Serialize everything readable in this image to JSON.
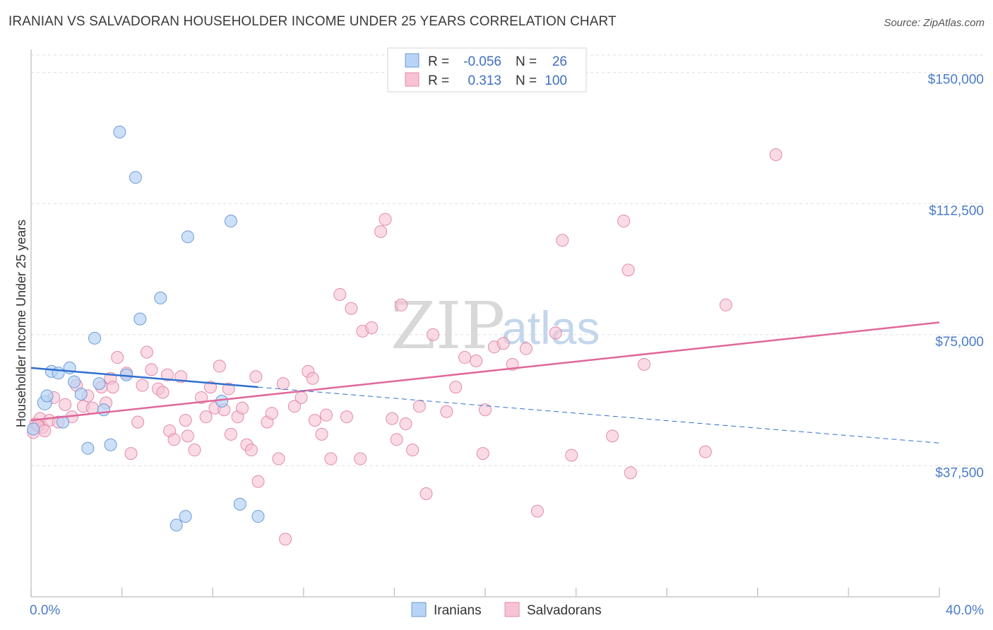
{
  "title": "IRANIAN VS SALVADORAN HOUSEHOLDER INCOME UNDER 25 YEARS CORRELATION CHART",
  "source": "Source: ZipAtlas.com",
  "watermark": {
    "part1": "ZIP",
    "part2": "atlas"
  },
  "colors": {
    "iranians_fill": "#b7d3f5",
    "iranians_stroke": "#6f9ad6",
    "iranians_line": "#2f6fcf",
    "salvadorans_fill": "#f7c3d4",
    "salvadorans_stroke": "#e28aab",
    "salvadorans_line": "#e0679a",
    "tick_label": "#4a7cc9",
    "grid": "#dddddd"
  },
  "legend": {
    "rows": [
      {
        "r_label": "R =",
        "r_value": "-0.056",
        "n_label": "N =",
        "n_value": "26"
      },
      {
        "r_label": "R =",
        "r_value": "0.313",
        "n_label": "N =",
        "n_value": "100"
      }
    ]
  },
  "bottom_legend": [
    "Iranians",
    "Salvadorans"
  ],
  "chart_data": {
    "type": "scatter",
    "ylabel": "Householder Income Under 25 years",
    "xlabel": "",
    "x_tick_labels": [
      "0.0%",
      "40.0%"
    ],
    "y_tick_labels": [
      "$150,000",
      "$112,500",
      "$75,000",
      "$37,500"
    ],
    "y_ticks": [
      150000,
      112500,
      75000,
      37500
    ],
    "xlim": [
      0,
      40
    ],
    "ylim": [
      0,
      155000
    ],
    "grid": true,
    "series": [
      {
        "name": "Iranians",
        "points": [
          [
            0.1,
            48000
          ],
          [
            0.6,
            55500
          ],
          [
            0.7,
            57500
          ],
          [
            0.9,
            64500
          ],
          [
            1.2,
            64000
          ],
          [
            1.4,
            50000
          ],
          [
            1.7,
            65500
          ],
          [
            1.9,
            61500
          ],
          [
            2.2,
            58000
          ],
          [
            2.5,
            42500
          ],
          [
            2.8,
            74000
          ],
          [
            3.0,
            61000
          ],
          [
            3.2,
            53500
          ],
          [
            3.5,
            43500
          ],
          [
            3.9,
            133000
          ],
          [
            4.2,
            63500
          ],
          [
            4.6,
            120000
          ],
          [
            4.8,
            79500
          ],
          [
            5.7,
            85500
          ],
          [
            6.4,
            20500
          ],
          [
            6.8,
            23000
          ],
          [
            6.9,
            103000
          ],
          [
            8.4,
            56000
          ],
          [
            8.8,
            107500
          ],
          [
            9.2,
            26500
          ],
          [
            10.0,
            23000
          ]
        ],
        "trend": {
          "x0": 0,
          "y0": 65500,
          "x1": 10,
          "y1": 60000,
          "dash_to_x": 40,
          "dash_to_y": 44000
        }
      },
      {
        "name": "Salvadorans",
        "points": [
          [
            0.1,
            47000
          ],
          [
            0.2,
            49500
          ],
          [
            0.4,
            51000
          ],
          [
            0.5,
            48500
          ],
          [
            0.8,
            50500
          ],
          [
            1.0,
            57000
          ],
          [
            1.2,
            50000
          ],
          [
            1.5,
            55000
          ],
          [
            1.8,
            51500
          ],
          [
            2.0,
            60500
          ],
          [
            2.3,
            54500
          ],
          [
            2.5,
            57500
          ],
          [
            2.7,
            54000
          ],
          [
            3.1,
            60000
          ],
          [
            3.3,
            55500
          ],
          [
            3.5,
            62500
          ],
          [
            3.6,
            60000
          ],
          [
            3.8,
            68500
          ],
          [
            4.2,
            64000
          ],
          [
            4.4,
            41000
          ],
          [
            4.7,
            50000
          ],
          [
            4.9,
            60500
          ],
          [
            5.1,
            70000
          ],
          [
            5.3,
            65000
          ],
          [
            5.6,
            59500
          ],
          [
            5.8,
            58500
          ],
          [
            6.0,
            63500
          ],
          [
            6.1,
            47500
          ],
          [
            6.3,
            45000
          ],
          [
            6.6,
            63000
          ],
          [
            6.8,
            50500
          ],
          [
            6.9,
            46000
          ],
          [
            7.2,
            42000
          ],
          [
            7.5,
            57000
          ],
          [
            7.7,
            51500
          ],
          [
            7.9,
            60000
          ],
          [
            8.1,
            54000
          ],
          [
            8.3,
            66000
          ],
          [
            8.5,
            53500
          ],
          [
            8.7,
            59500
          ],
          [
            8.8,
            46500
          ],
          [
            9.1,
            51500
          ],
          [
            9.3,
            54000
          ],
          [
            9.5,
            43500
          ],
          [
            9.7,
            42000
          ],
          [
            9.9,
            63000
          ],
          [
            10.0,
            33000
          ],
          [
            10.4,
            50000
          ],
          [
            10.6,
            52500
          ],
          [
            10.9,
            39500
          ],
          [
            11.1,
            61000
          ],
          [
            11.2,
            16500
          ],
          [
            11.6,
            54500
          ],
          [
            11.9,
            57000
          ],
          [
            12.2,
            64500
          ],
          [
            12.4,
            62500
          ],
          [
            12.5,
            50500
          ],
          [
            12.8,
            46500
          ],
          [
            13.0,
            52000
          ],
          [
            13.2,
            39500
          ],
          [
            13.6,
            86500
          ],
          [
            13.9,
            51500
          ],
          [
            14.1,
            82500
          ],
          [
            14.5,
            39500
          ],
          [
            14.6,
            76000
          ],
          [
            15.0,
            77000
          ],
          [
            15.4,
            104500
          ],
          [
            15.6,
            108000
          ],
          [
            15.9,
            51000
          ],
          [
            16.1,
            45000
          ],
          [
            16.3,
            83500
          ],
          [
            16.5,
            49500
          ],
          [
            16.8,
            42000
          ],
          [
            17.1,
            54500
          ],
          [
            17.4,
            29500
          ],
          [
            17.7,
            75000
          ],
          [
            18.3,
            53000
          ],
          [
            18.7,
            60000
          ],
          [
            19.1,
            68500
          ],
          [
            19.6,
            67500
          ],
          [
            19.9,
            41000
          ],
          [
            20.0,
            53500
          ],
          [
            20.4,
            71500
          ],
          [
            20.8,
            72500
          ],
          [
            21.2,
            66500
          ],
          [
            21.8,
            71000
          ],
          [
            22.3,
            24500
          ],
          [
            23.1,
            75500
          ],
          [
            23.4,
            102000
          ],
          [
            23.8,
            40500
          ],
          [
            25.6,
            46000
          ],
          [
            26.1,
            107500
          ],
          [
            26.3,
            93500
          ],
          [
            26.4,
            35500
          ],
          [
            27.0,
            66500
          ],
          [
            29.7,
            41500
          ],
          [
            30.6,
            83500
          ],
          [
            32.8,
            126500
          ],
          [
            0.3,
            49000
          ],
          [
            0.6,
            47500
          ]
        ],
        "trend": {
          "x0": 0,
          "y0": 50500,
          "x1": 40,
          "y1": 78500
        }
      }
    ]
  }
}
